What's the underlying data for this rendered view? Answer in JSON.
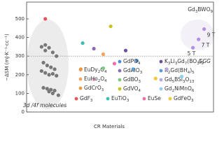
{
  "chart_data": {
    "type": "scatter",
    "y_label": "−ΔSM (mJ·K⁻¹·cc⁻¹)",
    "x_label": "CR Materials",
    "ylim": [
      0,
      590
    ],
    "yticks": [
      0,
      100,
      200,
      300,
      400,
      500
    ],
    "xlim": [
      0,
      100
    ],
    "reference": {
      "value": 300,
      "label": "GGG",
      "color": "#999999"
    },
    "group_label": "3d /4f molecules",
    "series": [
      {
        "name": "3d /4f molecules",
        "color": "#777777",
        "legend": false,
        "x": [
          8,
          10,
          12,
          14,
          16,
          9,
          11,
          13,
          15,
          8,
          10,
          12,
          14,
          16,
          9,
          11,
          13,
          15,
          12,
          14,
          17,
          10
        ],
        "values": [
          350,
          330,
          345,
          320,
          300,
          265,
          250,
          240,
          230,
          220,
          210,
          200,
          205,
          195,
          130,
          125,
          120,
          115,
          110,
          100,
          90,
          360
        ]
      },
      {
        "name": "GdF3",
        "color": "#e8545a",
        "x": [
          10
        ],
        "values": [
          500
        ]
      },
      {
        "name": "EuDy2O4",
        "color": "#f2a7c8",
        "x": [
          36
        ],
        "values": [
          175
        ]
      },
      {
        "name": "EuHo2O4",
        "color": "#f5a45d",
        "x": [
          41
        ],
        "values": [
          310
        ]
      },
      {
        "name": "GdCrO3",
        "color": "#e99a3b",
        "x": [
          29
        ],
        "values": [
          230
        ]
      },
      {
        "name": "GdPO4",
        "color": "#4b8fd1",
        "x": [
          59
        ],
        "values": [
          275
        ]
      },
      {
        "name": "GdAlO3",
        "color": "#8e6bb3",
        "x": [
          36
        ],
        "values": [
          340
        ]
      },
      {
        "name": "GdBO3",
        "color": "#7fc97f",
        "x": [
          41
        ],
        "values": [
          235
        ]
      },
      {
        "name": "GdVO4",
        "color": "#c9c21f",
        "x": [
          45
        ],
        "values": [
          460
        ]
      },
      {
        "name": "EuTiO3",
        "color": "#3bbfb0",
        "x": [
          30
        ],
        "values": [
          370
        ]
      },
      {
        "name": "K3Li3Gd7(BO3)9",
        "color": "#6e4f9c",
        "x": [
          53
        ],
        "values": [
          330
        ]
      },
      {
        "name": "K2Gd(BH4)5",
        "color": "#5aa0d6",
        "x": [
          57
        ],
        "values": [
          230
        ]
      },
      {
        "name": "Gd5BSi3O13",
        "color": "#b8a8e0",
        "x": [
          75
        ],
        "values": [
          230
        ]
      },
      {
        "name": "Gd2NiMnO6",
        "color": "#8fd0ef",
        "x": [
          83
        ],
        "values": [
          190
        ]
      },
      {
        "name": "EuSe",
        "color": "#f06fa8",
        "x": [
          47
        ],
        "values": [
          260
        ]
      },
      {
        "name": "GdFeO3",
        "color": "#f0c93a",
        "x": [
          69
        ],
        "values": [
          180
        ]
      },
      {
        "name": "Gd3BWO9",
        "color": "#b48ee0",
        "legend": false,
        "x": [
          89,
          92,
          95
        ],
        "values": [
          345,
          390,
          445
        ],
        "point_labels": [
          "5 T",
          "7 T",
          "9 T"
        ]
      }
    ]
  }
}
